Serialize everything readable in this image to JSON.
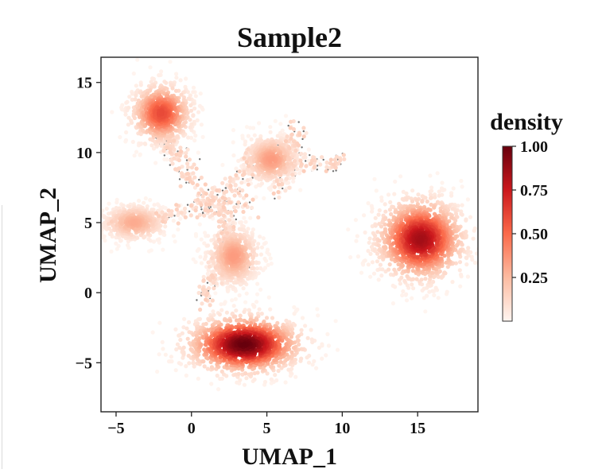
{
  "chart_data": {
    "type": "scatter",
    "title": "Sample2",
    "xlabel": "UMAP_1",
    "ylabel": "UMAP_2",
    "xlim": [
      -6,
      19
    ],
    "ylim": [
      -8.5,
      16.8
    ],
    "xticks": [
      -5,
      0,
      5,
      10,
      15
    ],
    "xtick_labels": [
      "−5",
      "0",
      "5",
      "10",
      "15"
    ],
    "yticks": [
      -5,
      0,
      5,
      10,
      15
    ],
    "ytick_labels": [
      "−5",
      "0",
      "5",
      "10",
      "15"
    ],
    "colorbar": {
      "title": "density",
      "min": 0.0,
      "max": 1.0,
      "ticks": [
        0.25,
        0.5,
        0.75,
        1.0
      ],
      "tick_labels": [
        "0.25",
        "0.50",
        "0.75",
        "1.00"
      ],
      "colormap": [
        "#fff5f0",
        "#fcbba1",
        "#fb6a4a",
        "#cb181d",
        "#67000d"
      ]
    },
    "background_point_color": "#707070",
    "clusters": [
      {
        "name": "bottom-center",
        "center": [
          3.5,
          -3.7
        ],
        "spread": [
          2.6,
          1.4
        ],
        "peak_density": 1.0
      },
      {
        "name": "right",
        "center": [
          15.2,
          3.8
        ],
        "spread": [
          2.0,
          2.0
        ],
        "peak_density": 0.85
      },
      {
        "name": "top-left",
        "center": [
          -2.0,
          12.8
        ],
        "spread": [
          1.4,
          1.5
        ],
        "peak_density": 0.6
      },
      {
        "name": "center-lobe-bottom",
        "center": [
          2.8,
          2.6
        ],
        "spread": [
          1.2,
          1.5
        ],
        "peak_density": 0.35
      },
      {
        "name": "center-lobe-left",
        "center": [
          -3.8,
          5.0
        ],
        "spread": [
          1.5,
          0.9
        ],
        "peak_density": 0.3
      },
      {
        "name": "center-lobe-top-right",
        "center": [
          5.3,
          9.5
        ],
        "spread": [
          1.3,
          1.2
        ],
        "peak_density": 0.35
      }
    ]
  }
}
